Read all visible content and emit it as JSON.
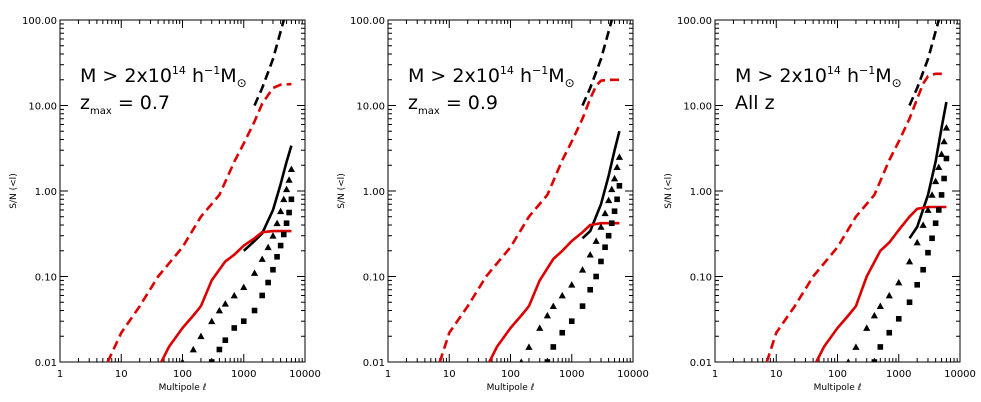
{
  "chart_data": [
    {
      "type": "line",
      "xlabel": "Multipole ℓ",
      "ylabel": "S/N (<l)",
      "xscale": "log",
      "yscale": "log",
      "xlim": [
        1,
        10000
      ],
      "ylim": [
        0.01,
        100
      ],
      "xticks": [
        "1",
        "10",
        "100",
        "1000",
        "10000"
      ],
      "yticks": [
        "0.01",
        "0.10",
        "1.00",
        "10.00",
        "100.00"
      ],
      "annotations": [
        "M > 2x10",
        "14",
        "h",
        "−1",
        "M",
        "⊙",
        "z",
        "max",
        "= 0.7"
      ],
      "series": [
        {
          "style": "dashed",
          "color": "#000000",
          "x": [
            1500,
            2000,
            3000,
            4500
          ],
          "y": [
            10,
            16,
            35,
            100
          ]
        },
        {
          "style": "dashed",
          "color": "#dd0000",
          "x": [
            6,
            10,
            20,
            40,
            100,
            200,
            400,
            700,
            1000,
            1500,
            2000,
            3000,
            4000,
            6000
          ],
          "y": [
            0.01,
            0.022,
            0.045,
            0.1,
            0.22,
            0.5,
            0.9,
            2.2,
            3.6,
            6.5,
            10.5,
            16,
            17.5,
            17.8
          ]
        },
        {
          "style": "solid",
          "color": "#000000",
          "x": [
            1000,
            1500,
            2000,
            3000,
            4000,
            5000,
            6000
          ],
          "y": [
            0.2,
            0.26,
            0.32,
            0.6,
            1.2,
            2.2,
            3.4
          ]
        },
        {
          "style": "solid",
          "color": "#dd0000",
          "x": [
            45,
            60,
            100,
            150,
            200,
            300,
            500,
            700,
            1000,
            1500,
            2000,
            3000,
            6000
          ],
          "y": [
            0.01,
            0.015,
            0.025,
            0.035,
            0.045,
            0.09,
            0.15,
            0.18,
            0.23,
            0.28,
            0.33,
            0.34,
            0.34
          ]
        },
        {
          "style": "triangles",
          "color": "#000000",
          "x": [
            100,
            150,
            200,
            300,
            400,
            500,
            700,
            1000,
            1500,
            2000,
            2500,
            3000,
            3500,
            4000,
            4500,
            5000,
            5500,
            6000
          ],
          "y": [
            0.01,
            0.014,
            0.02,
            0.03,
            0.04,
            0.048,
            0.06,
            0.075,
            0.11,
            0.16,
            0.22,
            0.3,
            0.42,
            0.58,
            0.8,
            1.05,
            1.35,
            1.8
          ]
        },
        {
          "style": "squares",
          "color": "#000000",
          "x": [
            300,
            400,
            500,
            700,
            1000,
            1500,
            2000,
            2500,
            3000,
            3500,
            4000,
            4500,
            5000,
            5500,
            6000
          ],
          "y": [
            0.01,
            0.014,
            0.018,
            0.025,
            0.03,
            0.04,
            0.06,
            0.085,
            0.12,
            0.17,
            0.23,
            0.31,
            0.42,
            0.56,
            0.8
          ]
        }
      ]
    },
    {
      "type": "line",
      "xlabel": "Multipole ℓ",
      "ylabel": "S/N (<l)",
      "xscale": "log",
      "yscale": "log",
      "xlim": [
        1,
        10000
      ],
      "ylim": [
        0.01,
        100
      ],
      "xticks": [
        "1",
        "10",
        "100",
        "1000",
        "10000"
      ],
      "yticks": [
        "0.01",
        "0.10",
        "1.00",
        "10.00",
        "100.00"
      ],
      "annotations": [
        "M > 2x10",
        "14",
        "h",
        "−1",
        "M",
        "⊙",
        "z",
        "max",
        "= 0.9"
      ],
      "series": [
        {
          "style": "dashed",
          "color": "#000000",
          "x": [
            1500,
            2000,
            3000,
            4500
          ],
          "y": [
            10,
            16,
            35,
            100
          ]
        },
        {
          "style": "dashed",
          "color": "#dd0000",
          "x": [
            7,
            10,
            20,
            40,
            100,
            200,
            400,
            700,
            1000,
            1500,
            2000,
            2500,
            3000,
            4000,
            6000
          ],
          "y": [
            0.01,
            0.022,
            0.045,
            0.1,
            0.22,
            0.5,
            0.9,
            2.3,
            3.8,
            7,
            12,
            17,
            19.5,
            20,
            20
          ]
        },
        {
          "style": "solid",
          "color": "#000000",
          "x": [
            1500,
            2000,
            3000,
            4000,
            5000,
            6000
          ],
          "y": [
            0.28,
            0.34,
            0.7,
            1.5,
            3,
            5
          ]
        },
        {
          "style": "solid",
          "color": "#dd0000",
          "x": [
            45,
            60,
            100,
            150,
            200,
            300,
            500,
            700,
            1000,
            1500,
            2000,
            3000,
            6000
          ],
          "y": [
            0.01,
            0.015,
            0.025,
            0.035,
            0.045,
            0.09,
            0.16,
            0.2,
            0.26,
            0.33,
            0.4,
            0.42,
            0.42
          ]
        },
        {
          "style": "triangles",
          "color": "#000000",
          "x": [
            150,
            200,
            300,
            400,
            500,
            700,
            1000,
            1500,
            2000,
            2500,
            3000,
            3500,
            4000,
            4500,
            5000,
            5500,
            6000
          ],
          "y": [
            0.01,
            0.015,
            0.025,
            0.035,
            0.045,
            0.06,
            0.08,
            0.12,
            0.18,
            0.26,
            0.38,
            0.55,
            0.78,
            1.05,
            1.4,
            1.9,
            2.5
          ]
        },
        {
          "style": "squares",
          "color": "#000000",
          "x": [
            400,
            500,
            700,
            1000,
            1500,
            2000,
            2500,
            3000,
            3500,
            4000,
            4500,
            5000,
            5500,
            6000
          ],
          "y": [
            0.01,
            0.015,
            0.022,
            0.03,
            0.045,
            0.07,
            0.1,
            0.15,
            0.22,
            0.3,
            0.42,
            0.58,
            0.8,
            1.15
          ]
        }
      ]
    },
    {
      "type": "line",
      "xlabel": "Multipole ℓ",
      "ylabel": "S/N (<l)",
      "xscale": "log",
      "yscale": "log",
      "xlim": [
        1,
        10000
      ],
      "ylim": [
        0.01,
        100
      ],
      "xticks": [
        "1",
        "10",
        "100",
        "1000",
        "10000"
      ],
      "yticks": [
        "0.01",
        "0.10",
        "1.00",
        "10.00",
        "100.00"
      ],
      "annotations": [
        "M > 2x10",
        "14",
        "h",
        "−1",
        "M",
        "⊙",
        "All z"
      ],
      "series": [
        {
          "style": "dashed",
          "color": "#000000",
          "x": [
            1500,
            2000,
            3000,
            4500
          ],
          "y": [
            10,
            16,
            35,
            100
          ]
        },
        {
          "style": "dashed",
          "color": "#dd0000",
          "x": [
            7,
            10,
            20,
            40,
            100,
            200,
            400,
            700,
            1000,
            1500,
            2000,
            2500,
            3000,
            4000,
            6000
          ],
          "y": [
            0.01,
            0.022,
            0.045,
            0.1,
            0.22,
            0.5,
            0.9,
            2.3,
            3.8,
            7,
            12,
            18,
            22,
            23.5,
            23.5
          ]
        },
        {
          "style": "solid",
          "color": "#000000",
          "x": [
            1500,
            2000,
            3000,
            4000,
            5000,
            6000
          ],
          "y": [
            0.28,
            0.38,
            0.9,
            2.2,
            5.5,
            11
          ]
        },
        {
          "style": "solid",
          "color": "#dd0000",
          "x": [
            45,
            60,
            100,
            150,
            200,
            300,
            500,
            700,
            1000,
            1500,
            2000,
            3000,
            6000
          ],
          "y": [
            0.01,
            0.015,
            0.025,
            0.035,
            0.045,
            0.1,
            0.2,
            0.25,
            0.35,
            0.5,
            0.62,
            0.65,
            0.65
          ]
        },
        {
          "style": "triangles",
          "color": "#000000",
          "x": [
            150,
            200,
            300,
            400,
            500,
            700,
            1000,
            1500,
            2000,
            2500,
            3000,
            3500,
            4000,
            4500,
            5000,
            5500,
            6000
          ],
          "y": [
            0.01,
            0.015,
            0.025,
            0.035,
            0.045,
            0.06,
            0.085,
            0.15,
            0.25,
            0.4,
            0.6,
            0.9,
            1.3,
            1.9,
            2.7,
            3.8,
            5.5
          ]
        },
        {
          "style": "squares",
          "color": "#000000",
          "x": [
            400,
            500,
            700,
            1000,
            1500,
            2000,
            2500,
            3000,
            3500,
            4000,
            4500,
            5000,
            5500,
            6000
          ],
          "y": [
            0.01,
            0.015,
            0.022,
            0.032,
            0.05,
            0.08,
            0.12,
            0.19,
            0.28,
            0.42,
            0.6,
            0.9,
            1.4,
            2.4
          ]
        }
      ]
    }
  ]
}
